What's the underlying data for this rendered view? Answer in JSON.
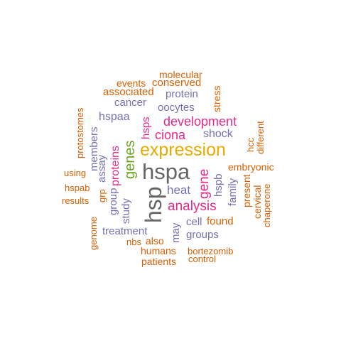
{
  "colors": {
    "grey": "#666666",
    "gold": "#e6ab02",
    "pink": "#e7298a",
    "green": "#66a61e",
    "purple": "#7570b3",
    "orange": "#d95f02"
  },
  "words": [
    {
      "text": "hspa",
      "color": "grey"
    },
    {
      "text": "hsp",
      "color": "grey"
    },
    {
      "text": "expression",
      "color": "gold"
    },
    {
      "text": "analysis",
      "color": "pink"
    },
    {
      "text": "development",
      "color": "pink"
    },
    {
      "text": "genes",
      "color": "green"
    },
    {
      "text": "gene",
      "color": "pink"
    },
    {
      "text": "ciona",
      "color": "pink"
    },
    {
      "text": "proteins",
      "color": "pink"
    },
    {
      "text": "hsps",
      "color": "pink"
    },
    {
      "text": "heat",
      "color": "purple"
    },
    {
      "text": "shock",
      "color": "purple"
    },
    {
      "text": "hspb",
      "color": "purple"
    },
    {
      "text": "family",
      "color": "purple"
    },
    {
      "text": "treatment",
      "color": "purple"
    },
    {
      "text": "study",
      "color": "purple"
    },
    {
      "text": "group",
      "color": "purple"
    },
    {
      "text": "assay",
      "color": "purple"
    },
    {
      "text": "members",
      "color": "purple"
    },
    {
      "text": "hspaa",
      "color": "purple"
    },
    {
      "text": "cancer",
      "color": "purple"
    },
    {
      "text": "oocytes",
      "color": "purple"
    },
    {
      "text": "protein",
      "color": "purple"
    },
    {
      "text": "cell",
      "color": "purple"
    },
    {
      "text": "groups",
      "color": "purple"
    },
    {
      "text": "may",
      "color": "purple"
    },
    {
      "text": "associated",
      "color": "orange"
    },
    {
      "text": "conserved",
      "color": "orange"
    },
    {
      "text": "events",
      "color": "orange"
    },
    {
      "text": "molecular",
      "color": "orange"
    },
    {
      "text": "stress",
      "color": "orange"
    },
    {
      "text": "different",
      "color": "orange"
    },
    {
      "text": "hcc",
      "color": "orange"
    },
    {
      "text": "embryonic",
      "color": "orange"
    },
    {
      "text": "present",
      "color": "orange"
    },
    {
      "text": "cervical",
      "color": "orange"
    },
    {
      "text": "chaperone",
      "color": "orange"
    },
    {
      "text": "found",
      "color": "orange"
    },
    {
      "text": "humans",
      "color": "orange"
    },
    {
      "text": "bortezomib",
      "color": "orange"
    },
    {
      "text": "control",
      "color": "orange"
    },
    {
      "text": "patients",
      "color": "orange"
    },
    {
      "text": "also",
      "color": "orange"
    },
    {
      "text": "nbs",
      "color": "orange"
    },
    {
      "text": "genome",
      "color": "orange"
    },
    {
      "text": "results",
      "color": "orange"
    },
    {
      "text": "hspab",
      "color": "orange"
    },
    {
      "text": "using",
      "color": "orange"
    },
    {
      "text": "protostomes",
      "color": "orange"
    },
    {
      "text": "grp",
      "color": "orange"
    }
  ]
}
